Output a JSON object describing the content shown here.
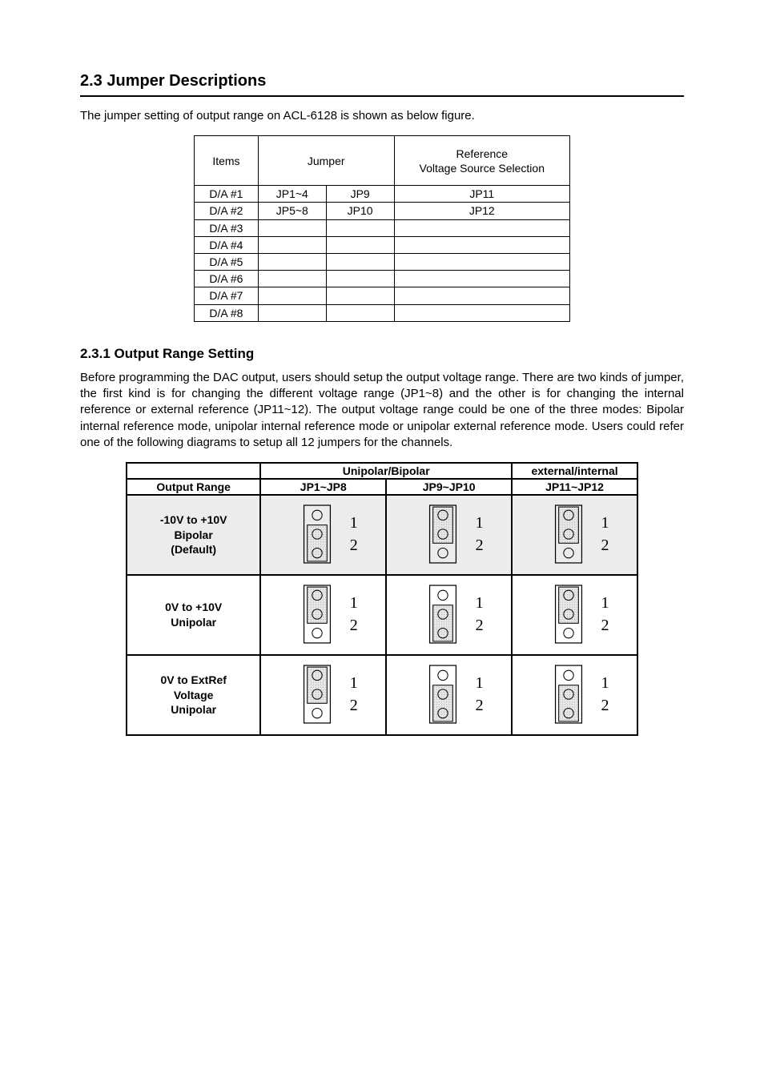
{
  "section": {
    "number": "2.3",
    "title": "Jumper Descriptions",
    "intro": "The jumper setting of output range on ACL-6128 is shown as below figure.",
    "table": {
      "columns": [
        "Items",
        "Jumper",
        "Reference\nVoltage Source Selection"
      ],
      "rows": [
        [
          "D/A #1",
          "JP1~4",
          "JP9",
          "JP11"
        ],
        [
          "D/A #2",
          "JP5~8",
          "JP10",
          "JP12"
        ],
        [
          "D/A #3",
          "",
          "",
          ""
        ],
        [
          "D/A #4",
          "",
          "",
          ""
        ],
        [
          "D/A #5",
          "",
          "",
          ""
        ],
        [
          "D/A #6",
          "",
          "",
          ""
        ],
        [
          "D/A #7",
          "",
          "",
          ""
        ],
        [
          "D/A #8",
          "",
          "",
          ""
        ]
      ]
    }
  },
  "subsection": {
    "number": "2.3.1",
    "title": "Output Range Setting",
    "paragraph": "Before programming the DAC output, users should setup the output voltage range. There are two kinds of jumper, the first kind is for changing the different voltage range (JP1~8) and the other is for changing the internal reference or external reference (JP11~12). The output voltage range could be one of the three modes: Bipolar internal reference mode, unipolar internal reference mode or unipolar external reference mode. Users could refer one of the following diagrams to setup all 12 jumpers for the channels."
  },
  "jumperTable": {
    "header1": [
      "",
      "Unipolar/Bipolar",
      "external/internal"
    ],
    "header2": [
      "Output Range",
      "JP1~JP8",
      "JP9~JP10",
      "JP11~JP12"
    ],
    "rows": [
      {
        "label_line1": "-10V to +10V",
        "label_line2": "Bipolar",
        "label_line3": "(Default)",
        "shaded": true,
        "cells": [
          {
            "pos": "bottom"
          },
          {
            "pos": "top"
          },
          {
            "pos": "top"
          }
        ]
      },
      {
        "label_line1": "0V to +10V",
        "label_line2": "Unipolar",
        "label_line3": "",
        "shaded": false,
        "cells": [
          {
            "pos": "top"
          },
          {
            "pos": "bottom"
          },
          {
            "pos": "top"
          }
        ]
      },
      {
        "label_line1": "0V to ExtRef",
        "label_line2": "Voltage",
        "label_line3": "Unipolar",
        "shaded": false,
        "cells": [
          {
            "pos": "top"
          },
          {
            "pos": "bottom"
          },
          {
            "pos": "bottom"
          }
        ]
      }
    ],
    "pinLabels": [
      "1",
      "2"
    ]
  },
  "style": {
    "shaded_bg": "#ececec",
    "dot_fill": "#dcdcdc"
  }
}
